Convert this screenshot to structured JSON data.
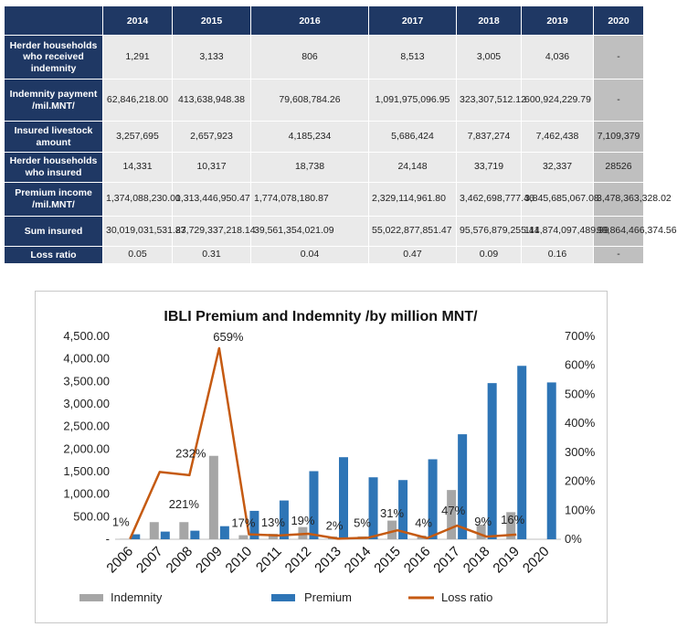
{
  "table": {
    "columns": [
      "2014",
      "2015",
      "2016",
      "2017",
      "2018",
      "2019",
      "2020"
    ],
    "rows": [
      {
        "label": "Herder households who received indemnity",
        "values": [
          "1,291",
          "3,133",
          "806",
          "8,513",
          "3,005",
          "4,036",
          "-"
        ]
      },
      {
        "label": "Indemnity payment /mil.MNT/",
        "values": [
          "62,846,218.00",
          "413,638,948.38",
          "79,608,784.26",
          "1,091,975,096.95",
          "323,307,512.12",
          "600,924,229.79",
          "-"
        ]
      },
      {
        "label": "Insured livestock amount",
        "values": [
          "3,257,695",
          "2,657,923",
          "4,185,234",
          "5,686,424",
          "7,837,274",
          "7,462,438",
          "7,109,379"
        ]
      },
      {
        "label": "Herder households who insured",
        "values": [
          "14,331",
          "10,317",
          "18,738",
          "24,148",
          "33,719",
          "32,337",
          "28526"
        ]
      },
      {
        "label": "Premium income /mil.MNT/",
        "values": [
          "1,374,088,230.00",
          "1,313,446,950.47",
          "1,774,078,180.87",
          "2,329,114,961.80",
          "3,462,698,777.46",
          "3,845,685,067.08",
          "3,478,363,328.02"
        ]
      },
      {
        "label": "Sum insured",
        "values": [
          "30,019,031,531.83",
          "27,729,337,218.14",
          "39,561,354,021.09",
          "55,022,877,851.47",
          "95,576,879,255.41",
          "114,874,097,489.99",
          "99,864,466,374.56"
        ]
      },
      {
        "label": "Loss ratio",
        "values": [
          "0.05",
          "0.31",
          "0.04",
          "0.47",
          "0.09",
          "0.16",
          "-"
        ]
      }
    ]
  },
  "chart_data": {
    "type": "bar",
    "title": "IBLI Premium and Indemnity /by million MNT/",
    "categories": [
      "2006",
      "2007",
      "2008",
      "2009",
      "2010",
      "2011",
      "2012",
      "2013",
      "2014",
      "2015",
      "2016",
      "2017",
      "2018",
      "2019",
      "2020"
    ],
    "series": [
      {
        "name": "Indemnity",
        "type": "bar",
        "axis": "left",
        "color": "#a6a6a6",
        "values": [
          10,
          380,
          380,
          1850,
          90,
          120,
          270,
          60,
          63,
          414,
          80,
          1092,
          323,
          601,
          0
        ]
      },
      {
        "name": "Premium",
        "type": "bar",
        "axis": "left",
        "color": "#2e75b6",
        "values": [
          110,
          170,
          190,
          290,
          630,
          860,
          1510,
          1820,
          1374,
          1313,
          1774,
          2329,
          3463,
          3846,
          3478
        ]
      },
      {
        "name": "Loss ratio",
        "type": "line",
        "axis": "right",
        "color": "#c55a11",
        "values": [
          1,
          232,
          221,
          659,
          17,
          13,
          19,
          2,
          5,
          31,
          4,
          47,
          9,
          16,
          null
        ]
      }
    ],
    "loss_ratio_labels": [
      "1%",
      "232%",
      "221%",
      "659%",
      "17%",
      "13%",
      "19%",
      "2%",
      "5%",
      "31%",
      "4%",
      "47%",
      "9%",
      "16%"
    ],
    "y_left": {
      "ticks": [
        "-",
        "500.00",
        "1,000.00",
        "1,500.00",
        "2,000.00",
        "2,500.00",
        "3,000.00",
        "3,500.00",
        "4,000.00",
        "4,500.00"
      ],
      "ylim": [
        0,
        4500
      ]
    },
    "y_right": {
      "ticks": [
        "0%",
        "100%",
        "200%",
        "300%",
        "400%",
        "500%",
        "600%",
        "700%"
      ],
      "ylim": [
        0,
        700
      ]
    },
    "grid": false,
    "legend_position": "bottom",
    "legend": [
      "Indemnity",
      "Premium",
      "Loss ratio"
    ]
  }
}
